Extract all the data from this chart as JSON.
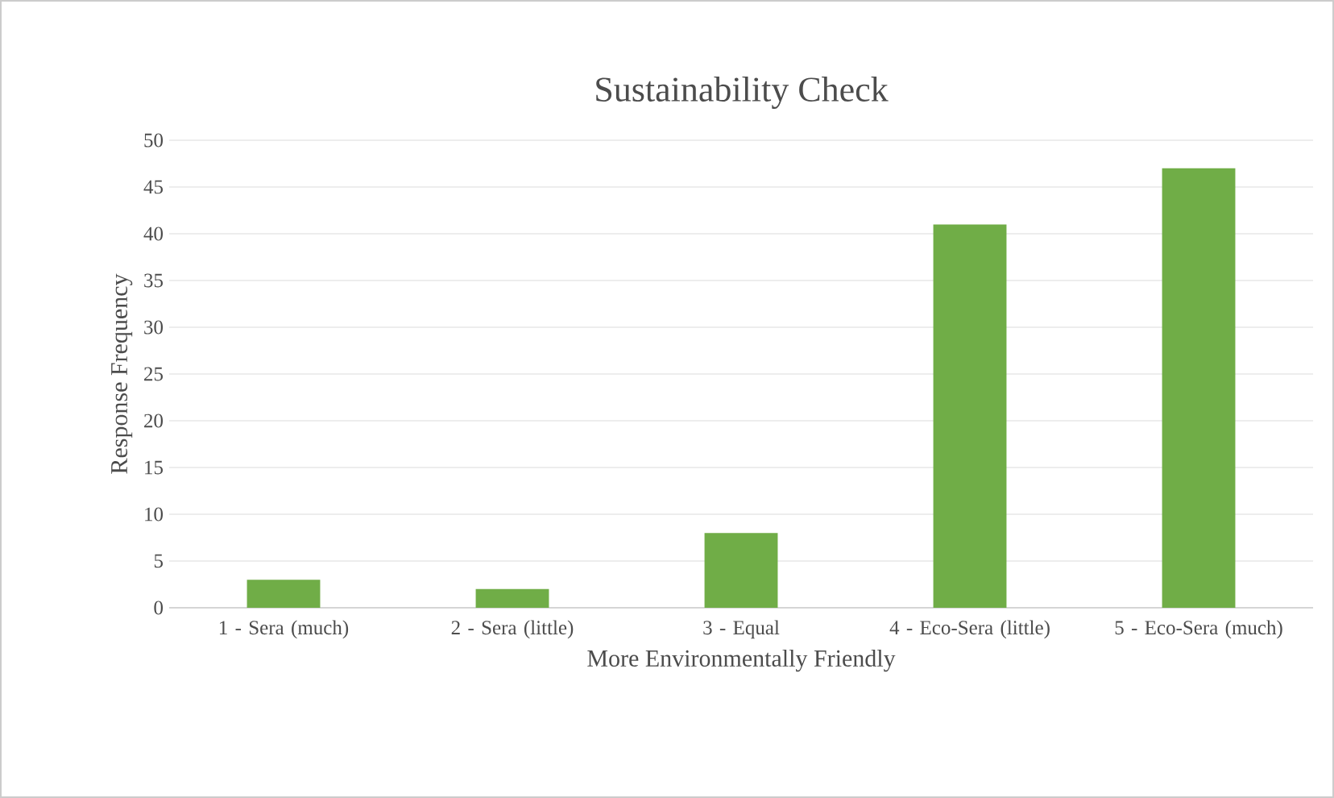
{
  "chart_data": {
    "type": "bar",
    "title": "Sustainability  Check",
    "xlabel": "More Environmentally  Friendly",
    "ylabel": "Response Frequency",
    "categories": [
      "1 - Sera (much)",
      "2 - Sera (little)",
      "3 - Equal",
      "4 - Eco-Sera (little)",
      "5 - Eco-Sera (much)"
    ],
    "values": [
      3,
      2,
      8,
      41,
      47
    ],
    "color": "#70ad47",
    "ylim": [
      0,
      50
    ],
    "yticks": [
      0,
      5,
      10,
      15,
      20,
      25,
      30,
      35,
      40,
      45,
      50
    ],
    "grid": "y"
  }
}
